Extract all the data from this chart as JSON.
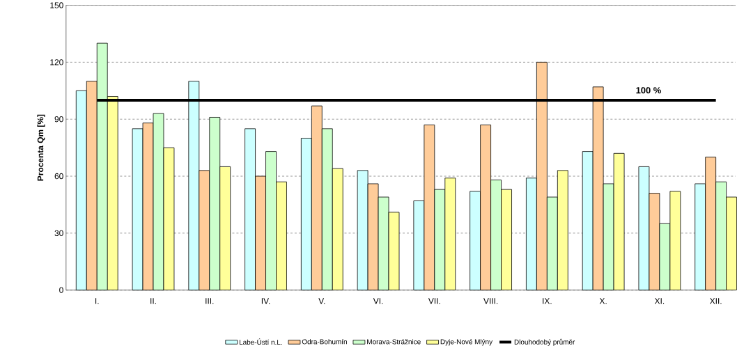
{
  "chart_data": {
    "type": "bar",
    "ylabel": "Procenta Qm [%]",
    "categories": [
      "I.",
      "II.",
      "III.",
      "IV.",
      "V.",
      "VI.",
      "VII.",
      "VIII.",
      "IX.",
      "X.",
      "XI.",
      "XII."
    ],
    "series": [
      {
        "name": "Labe-Ústí n.L.",
        "color": "#ccffff",
        "values": [
          105,
          85,
          110,
          85,
          80,
          63,
          47,
          52,
          59,
          73,
          65,
          56
        ]
      },
      {
        "name": "Odra-Bohumín",
        "color": "#ffcc99",
        "values": [
          110,
          88,
          63,
          60,
          97,
          56,
          87,
          87,
          120,
          107,
          51,
          70
        ]
      },
      {
        "name": "Morava-Strážnice",
        "color": "#ccffcc",
        "values": [
          130,
          93,
          91,
          73,
          85,
          49,
          53,
          58,
          49,
          56,
          35,
          57
        ]
      },
      {
        "name": "Dyje-Nové Mlýny",
        "color": "#ffff99",
        "values": [
          102,
          75,
          65,
          57,
          64,
          41,
          59,
          53,
          63,
          72,
          52,
          49
        ]
      },
      {
        "name": "Dlouhodobý průměr",
        "type": "line",
        "color": "#000000",
        "values": [
          100,
          100,
          100,
          100,
          100,
          100,
          100,
          100,
          100,
          100,
          100,
          100
        ]
      }
    ],
    "annotations": [
      "100 %"
    ],
    "ylim": [
      0,
      150
    ],
    "yticks": [
      0,
      30,
      60,
      90,
      120,
      150
    ],
    "grid": "y",
    "legend": "bottom",
    "marker": "none"
  }
}
